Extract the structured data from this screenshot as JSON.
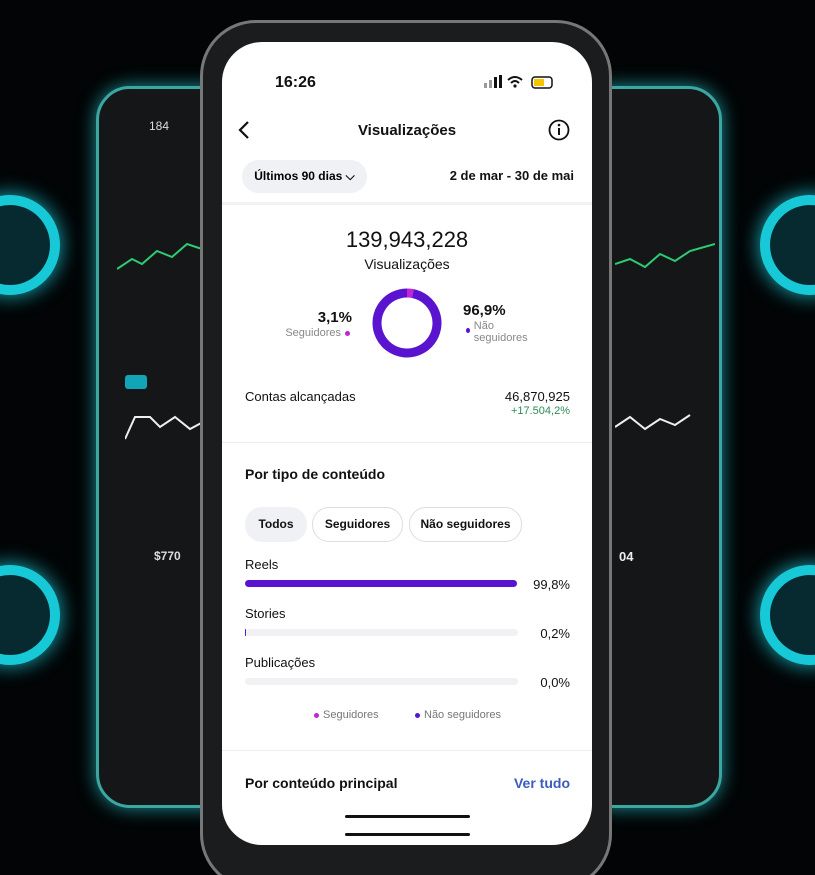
{
  "status_bar": {
    "time": "16:26"
  },
  "header": {
    "title": "Visualizações"
  },
  "filter": {
    "period": "Últimos 90 dias",
    "date_range": "2 de mar - 30 de mai"
  },
  "summary": {
    "total": "139,943,228",
    "label": "Visualizações"
  },
  "audience": [
    {
      "label": "Seguidores",
      "value": 3.1,
      "value_label": "3,1%",
      "color": "#c026d3"
    },
    {
      "label": "Não seguidores",
      "value": 96.9,
      "value_label": "96,9%",
      "color": "#5a14d0"
    }
  ],
  "reach": {
    "label": "Contas alcançadas",
    "value": "46,870,925",
    "change": "+17.504,2%"
  },
  "content_type": {
    "title": "Por tipo de conteúdo",
    "tabs": [
      "Todos",
      "Seguidores",
      "Não seguidores"
    ],
    "rows": [
      {
        "label": "Reels",
        "value": 99.8,
        "value_label": "99,8%"
      },
      {
        "label": "Stories",
        "value": 0.2,
        "value_label": "0,2%"
      },
      {
        "label": "Publicações",
        "value": 0.0,
        "value_label": "0,0%"
      }
    ],
    "legend": [
      "Seguidores",
      "Não seguidores"
    ]
  },
  "top_content": {
    "title": "Por conteúdo principal",
    "link": "Ver tudo"
  },
  "background_phones": {
    "left_time": "184",
    "left_amount": "$770",
    "right_value": "04"
  }
}
